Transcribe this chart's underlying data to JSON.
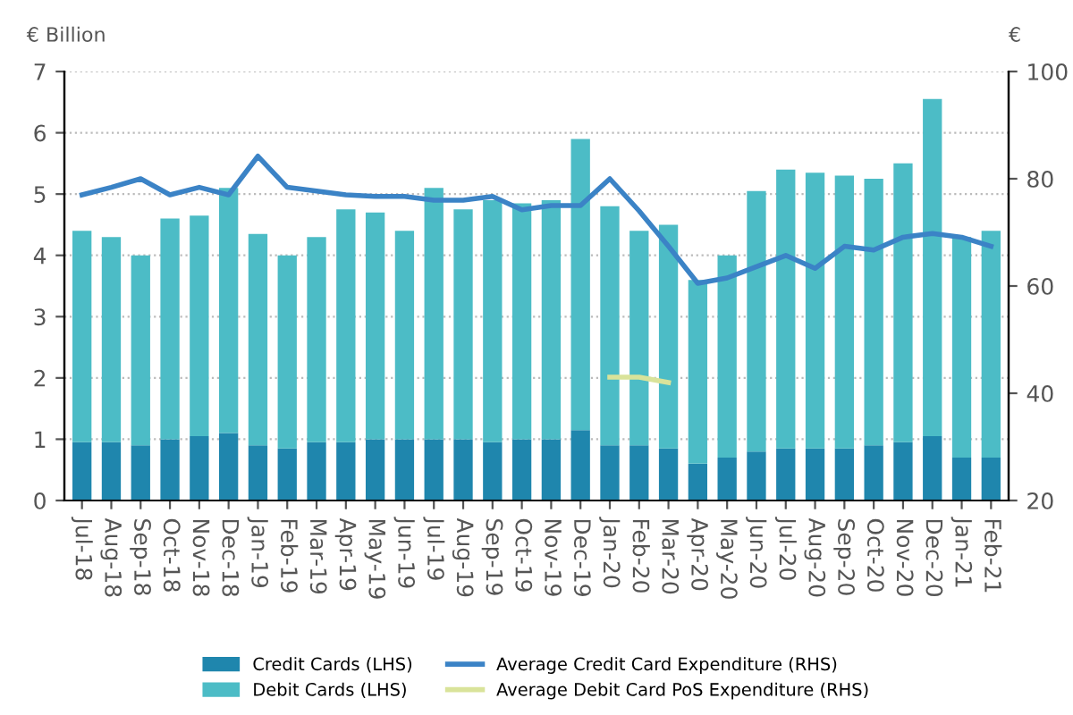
{
  "chart_data": {
    "type": "bar",
    "stacked": true,
    "ylabel": "€ Billion",
    "y2label": "€",
    "categories": [
      "Jul-18",
      "Aug-18",
      "Sep-18",
      "Oct-18",
      "Nov-18",
      "Dec-18",
      "Jan-19",
      "Feb-19",
      "Mar-19",
      "Apr-19",
      "May-19",
      "Jun-19",
      "Jul-19",
      "Aug-19",
      "Sep-19",
      "Oct-19",
      "Nov-19",
      "Dec-19",
      "Jan-20",
      "Feb-20",
      "Mar-20",
      "Apr-20",
      "May-20",
      "Jun-20",
      "Jul-20",
      "Aug-20",
      "Sep-20",
      "Oct-20",
      "Nov-20",
      "Dec-20",
      "Jan-21",
      "Feb-21"
    ],
    "series": [
      {
        "name": "Credit Cards (LHS)",
        "color": "#1f86ad",
        "values": [
          0.95,
          0.95,
          0.9,
          1.0,
          1.05,
          1.1,
          0.9,
          0.85,
          0.95,
          0.95,
          1.0,
          1.0,
          1.0,
          1.0,
          0.95,
          1.0,
          1.0,
          1.15,
          0.9,
          0.9,
          0.85,
          0.6,
          0.7,
          0.8,
          0.85,
          0.85,
          0.85,
          0.9,
          0.95,
          1.05,
          0.7,
          0.7
        ]
      },
      {
        "name": "Debit Cards (LHS)",
        "color": "#4cbcc6",
        "values": [
          3.45,
          3.35,
          3.1,
          3.6,
          3.6,
          4.0,
          3.45,
          3.15,
          3.35,
          3.8,
          3.7,
          3.4,
          4.1,
          3.75,
          3.95,
          3.85,
          3.9,
          4.75,
          3.9,
          3.5,
          3.65,
          3.0,
          3.3,
          4.25,
          4.55,
          4.5,
          4.45,
          4.35,
          4.55,
          5.5,
          3.6,
          3.7
        ]
      },
      {
        "name": "Average Credit Card Expenditure (RHS)",
        "type": "line",
        "axis": "y2",
        "color": "#3b83c6",
        "values": [
          77,
          78.4,
          80,
          77,
          78.4,
          77,
          84.2,
          78.4,
          77.7,
          77,
          76.7,
          76.7,
          76,
          76,
          76.7,
          74.2,
          75,
          75,
          80,
          74,
          67.4,
          60.5,
          61.5,
          63.6,
          65.7,
          63.3,
          67.4,
          66.7,
          69.1,
          69.8,
          69.1,
          67.4
        ]
      },
      {
        "name": "Average Debit Card PoS Expenditure (RHS)",
        "type": "line",
        "axis": "y2",
        "color": "#d9e39a",
        "values": [
          null,
          null,
          null,
          null,
          null,
          null,
          null,
          null,
          null,
          null,
          null,
          null,
          null,
          null,
          null,
          null,
          null,
          null,
          43,
          43,
          42,
          null,
          null,
          null,
          null,
          null,
          null,
          null,
          null,
          null,
          null,
          null
        ]
      }
    ],
    "ylim": [
      0,
      7
    ],
    "yticks": [
      0,
      1,
      2,
      3,
      4,
      5,
      6,
      7
    ],
    "y2lim": [
      20,
      100
    ],
    "y2ticks": [
      20,
      40,
      60,
      80,
      100
    ],
    "grid": "y",
    "legend": "bottom"
  }
}
